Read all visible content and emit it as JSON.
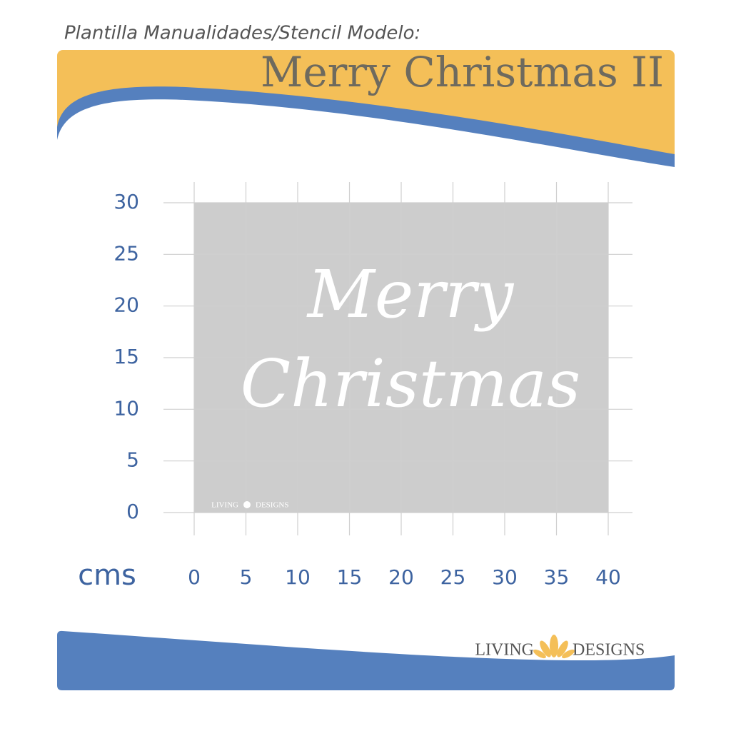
{
  "header": {
    "subtitle": "Plantilla Manualidades/Stencil Modelo:",
    "title": "Merry Christmas II"
  },
  "grid": {
    "unit": "cms",
    "xlim": [
      0,
      40
    ],
    "ylim": [
      0,
      30
    ],
    "xticks": [
      0,
      5,
      10,
      15,
      20,
      25,
      30,
      35,
      40
    ],
    "yticks": [
      0,
      5,
      10,
      15,
      20,
      25,
      30
    ]
  },
  "stencil": {
    "lines": [
      "Merry",
      "Christmas"
    ],
    "watermark_left": "LIVING",
    "watermark_right": "DESIGNS"
  },
  "footer": {
    "brand_left": "LIVING",
    "brand_right": "DESIGNS"
  }
}
